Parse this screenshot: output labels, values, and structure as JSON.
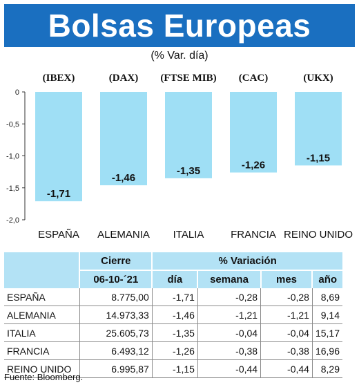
{
  "title": "Bolsas Europeas",
  "subtitle": "(% Var. día)",
  "chart_data": {
    "type": "bar",
    "title": "Bolsas Europeas",
    "subtitle": "(% Var. día)",
    "index_labels": [
      "(IBEX)",
      "(DAX)",
      "(FTSE MIB)",
      "(CAC)",
      "(UKX)"
    ],
    "categories": [
      "ESPAÑA",
      "ALEMANIA",
      "ITALIA",
      "FRANCIA",
      "REINO UNIDO"
    ],
    "values": [
      -1.71,
      -1.46,
      -1.35,
      -1.26,
      -1.15
    ],
    "value_labels": [
      "-1,71",
      "-1,46",
      "-1,35",
      "-1,26",
      "-1,15"
    ],
    "yticks": [
      "0",
      "-0,5",
      "-1,0",
      "-1,5",
      "-2,0"
    ],
    "ytick_values": [
      0,
      -0.5,
      -1.0,
      -1.5,
      -2.0
    ],
    "ylim": [
      -2.0,
      0
    ],
    "bar_color": "#9fdff5",
    "grid": false
  },
  "table": {
    "group_headers": [
      "Cierre",
      "% Variación"
    ],
    "sub_headers": [
      "06-10-´21",
      "día",
      "semana",
      "mes",
      "año"
    ],
    "rows": [
      {
        "country": "ESPAÑA",
        "cierre": "8.775,00",
        "dia": "-1,71",
        "semana": "-0,28",
        "mes": "-0,28",
        "ano": "8,69"
      },
      {
        "country": "ALEMANIA",
        "cierre": "14.973,33",
        "dia": "-1,46",
        "semana": "-1,21",
        "mes": "-1,21",
        "ano": "9,14"
      },
      {
        "country": "ITALIA",
        "cierre": "25.605,73",
        "dia": "-1,35",
        "semana": "-0,04",
        "mes": "-0,04",
        "ano": "15,17"
      },
      {
        "country": "FRANCIA",
        "cierre": "6.493,12",
        "dia": "-1,26",
        "semana": "-0,38",
        "mes": "-0,38",
        "ano": "16,96"
      },
      {
        "country": "REINO UNIDO",
        "cierre": "6.995,87",
        "dia": "-1,15",
        "semana": "-0,44",
        "mes": "-0,44",
        "ano": "8,29"
      }
    ]
  },
  "source": "Fuente: Bloomberg."
}
